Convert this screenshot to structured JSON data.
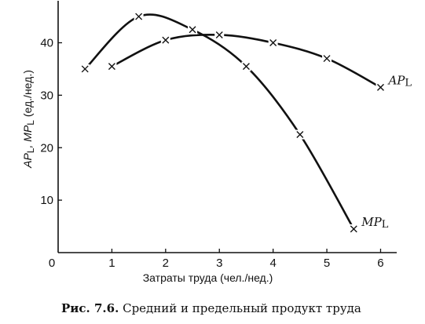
{
  "chart_data": {
    "type": "line",
    "xlabel": "Затраты труда (чел./нед.)",
    "ylabel": "APL, MPL (ед./нед.)",
    "ylabel_parts": [
      "AP",
      "L",
      ", MP",
      "L",
      " (ед./нед.)"
    ],
    "x_ticks": [
      "0",
      "1",
      "2",
      "3",
      "4",
      "5",
      "6"
    ],
    "y_ticks": [
      "10",
      "20",
      "30",
      "40"
    ],
    "xlim": [
      0,
      6.3
    ],
    "ylim": [
      0,
      48
    ],
    "grid": false,
    "series": [
      {
        "name": "APL",
        "label_main": "AP",
        "label_sub": "L",
        "x": [
          1,
          2,
          3,
          4,
          5,
          6
        ],
        "y": [
          35.5,
          40.5,
          41.5,
          40.0,
          37.0,
          31.5
        ]
      },
      {
        "name": "MPL",
        "label_main": "MP",
        "label_sub": "L",
        "x": [
          0.5,
          1.5,
          2.5,
          3.5,
          4.5,
          5.5
        ],
        "y": [
          35.0,
          45.0,
          42.5,
          35.5,
          22.5,
          4.5
        ]
      }
    ]
  },
  "caption": {
    "number": "Рис. 7.6.",
    "text": "Средний и предельный продукт труда"
  }
}
